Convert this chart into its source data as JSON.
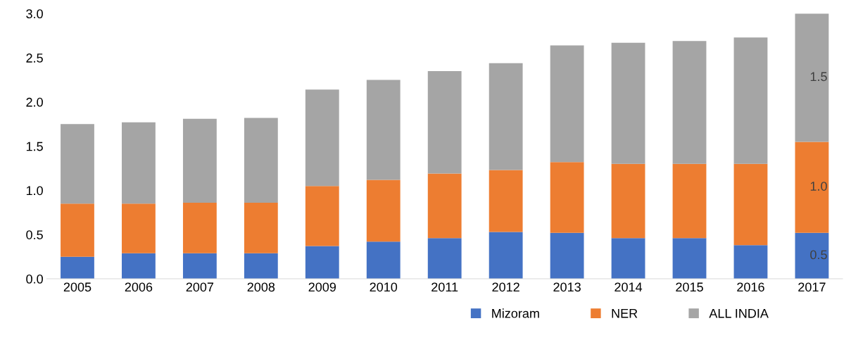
{
  "chart_data": {
    "type": "bar",
    "stacked": true,
    "categories": [
      "2005",
      "2006",
      "2007",
      "2008",
      "2009",
      "2010",
      "2011",
      "2012",
      "2013",
      "2014",
      "2015",
      "2016",
      "2017"
    ],
    "series": [
      {
        "name": "Mizoram",
        "color": "#4472c4",
        "values": [
          0.25,
          0.29,
          0.29,
          0.29,
          0.37,
          0.42,
          0.46,
          0.53,
          0.52,
          0.46,
          0.46,
          0.38,
          0.52
        ],
        "value_labels": [
          null,
          null,
          null,
          null,
          null,
          null,
          null,
          null,
          null,
          null,
          null,
          null,
          "0.5"
        ]
      },
      {
        "name": "NER",
        "color": "#ed7d31",
        "values": [
          0.6,
          0.56,
          0.57,
          0.57,
          0.68,
          0.7,
          0.73,
          0.7,
          0.8,
          0.84,
          0.84,
          0.92,
          1.03
        ],
        "value_labels": [
          null,
          null,
          null,
          null,
          null,
          null,
          null,
          null,
          null,
          null,
          null,
          null,
          "1.0"
        ]
      },
      {
        "name": "ALL INDIA",
        "color": "#a5a5a5",
        "values": [
          0.9,
          0.92,
          0.95,
          0.96,
          1.09,
          1.13,
          1.16,
          1.21,
          1.32,
          1.37,
          1.39,
          1.43,
          1.45
        ],
        "value_labels": [
          null,
          null,
          null,
          null,
          null,
          null,
          null,
          null,
          null,
          null,
          null,
          null,
          "1.5"
        ]
      }
    ],
    "ylim": [
      0,
      3.0
    ],
    "yticks": [
      {
        "value": 0,
        "label": "0.0"
      },
      {
        "value": 0.5,
        "label": "0.5"
      },
      {
        "value": 1.0,
        "label": "1.0"
      },
      {
        "value": 1.5,
        "label": "1.5"
      },
      {
        "value": 2.0,
        "label": "2.0"
      },
      {
        "value": 2.5,
        "label": "2.5"
      },
      {
        "value": 3.0,
        "label": "3.0"
      }
    ],
    "grid": false,
    "legend": "bottom"
  }
}
